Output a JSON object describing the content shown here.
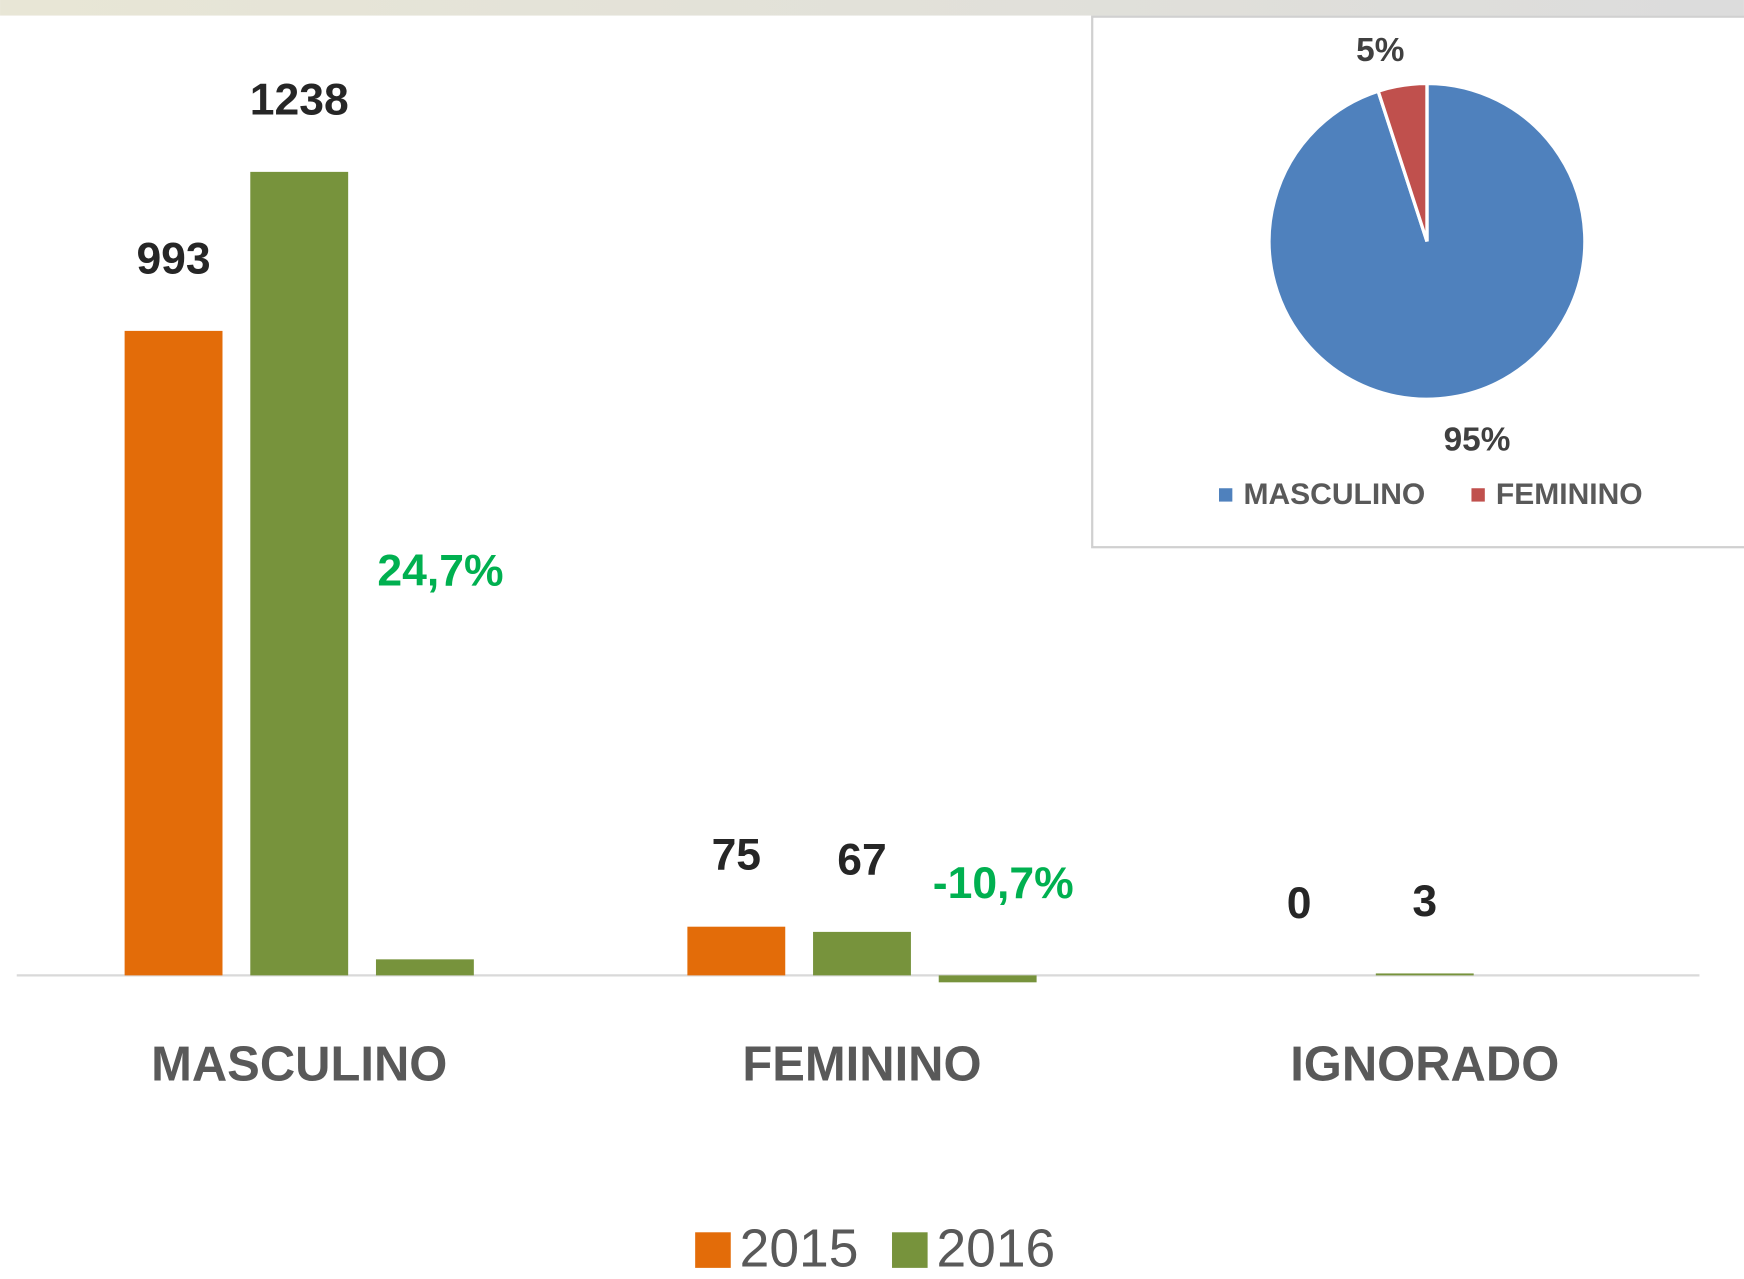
{
  "chart_data": [
    {
      "type": "bar",
      "categories": [
        "MASCULINO",
        "FEMININO",
        "IGNORADO"
      ],
      "series": [
        {
          "name": "2015",
          "color": "#e36c09",
          "values": [
            993,
            75,
            0
          ]
        },
        {
          "name": "2016",
          "color": "#77933c",
          "values": [
            1238,
            67,
            3
          ]
        },
        {
          "color": "#77933c",
          "label_color": "#00b050",
          "values": [
            24.7,
            -10.7,
            null
          ],
          "value_labels": [
            "24,7%",
            "-10,7%",
            null
          ]
        }
      ],
      "ylim": [
        -50,
        1400
      ],
      "legend": "bottom"
    },
    {
      "type": "pie",
      "categories": [
        "MASCULINO",
        "FEMININO"
      ],
      "values": [
        95,
        5
      ],
      "value_labels": [
        "95%",
        "5%"
      ],
      "colors": [
        "#4f81bd",
        "#c0504d"
      ],
      "legend": "bottom"
    }
  ]
}
